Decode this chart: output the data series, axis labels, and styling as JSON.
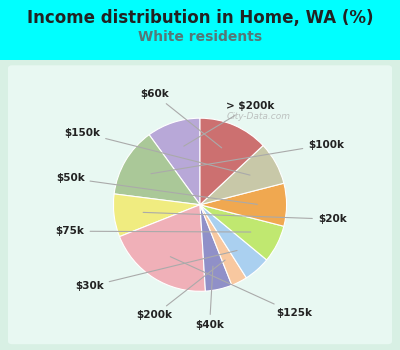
{
  "title": "Income distribution in Home, WA (%)",
  "subtitle": "White residents",
  "title_color": "#222222",
  "subtitle_color": "#557777",
  "background_color": "#00ffff",
  "chart_bg_left": "#c8eedd",
  "chart_bg_right": "#e8f8f0",
  "watermark": "City-Data.com",
  "labels": [
    "> $200k",
    "$100k",
    "$20k",
    "$125k",
    "$40k",
    "$200k",
    "$30k",
    "$75k",
    "$50k",
    "$150k",
    "$60k"
  ],
  "sizes": [
    10,
    13,
    8,
    20,
    5,
    3,
    5,
    7,
    8,
    8,
    13
  ],
  "colors": [
    "#b8a8d8",
    "#aac898",
    "#f0ec80",
    "#f0b0b8",
    "#9090c8",
    "#f8c8a0",
    "#aad0f0",
    "#c0e870",
    "#f0a850",
    "#c8c8a8",
    "#cc7070"
  ],
  "startangle": 90,
  "label_fontsize": 7.5,
  "title_fontsize": 12,
  "subtitle_fontsize": 10,
  "label_color": "#222222",
  "line_color": "#aaaaaa"
}
